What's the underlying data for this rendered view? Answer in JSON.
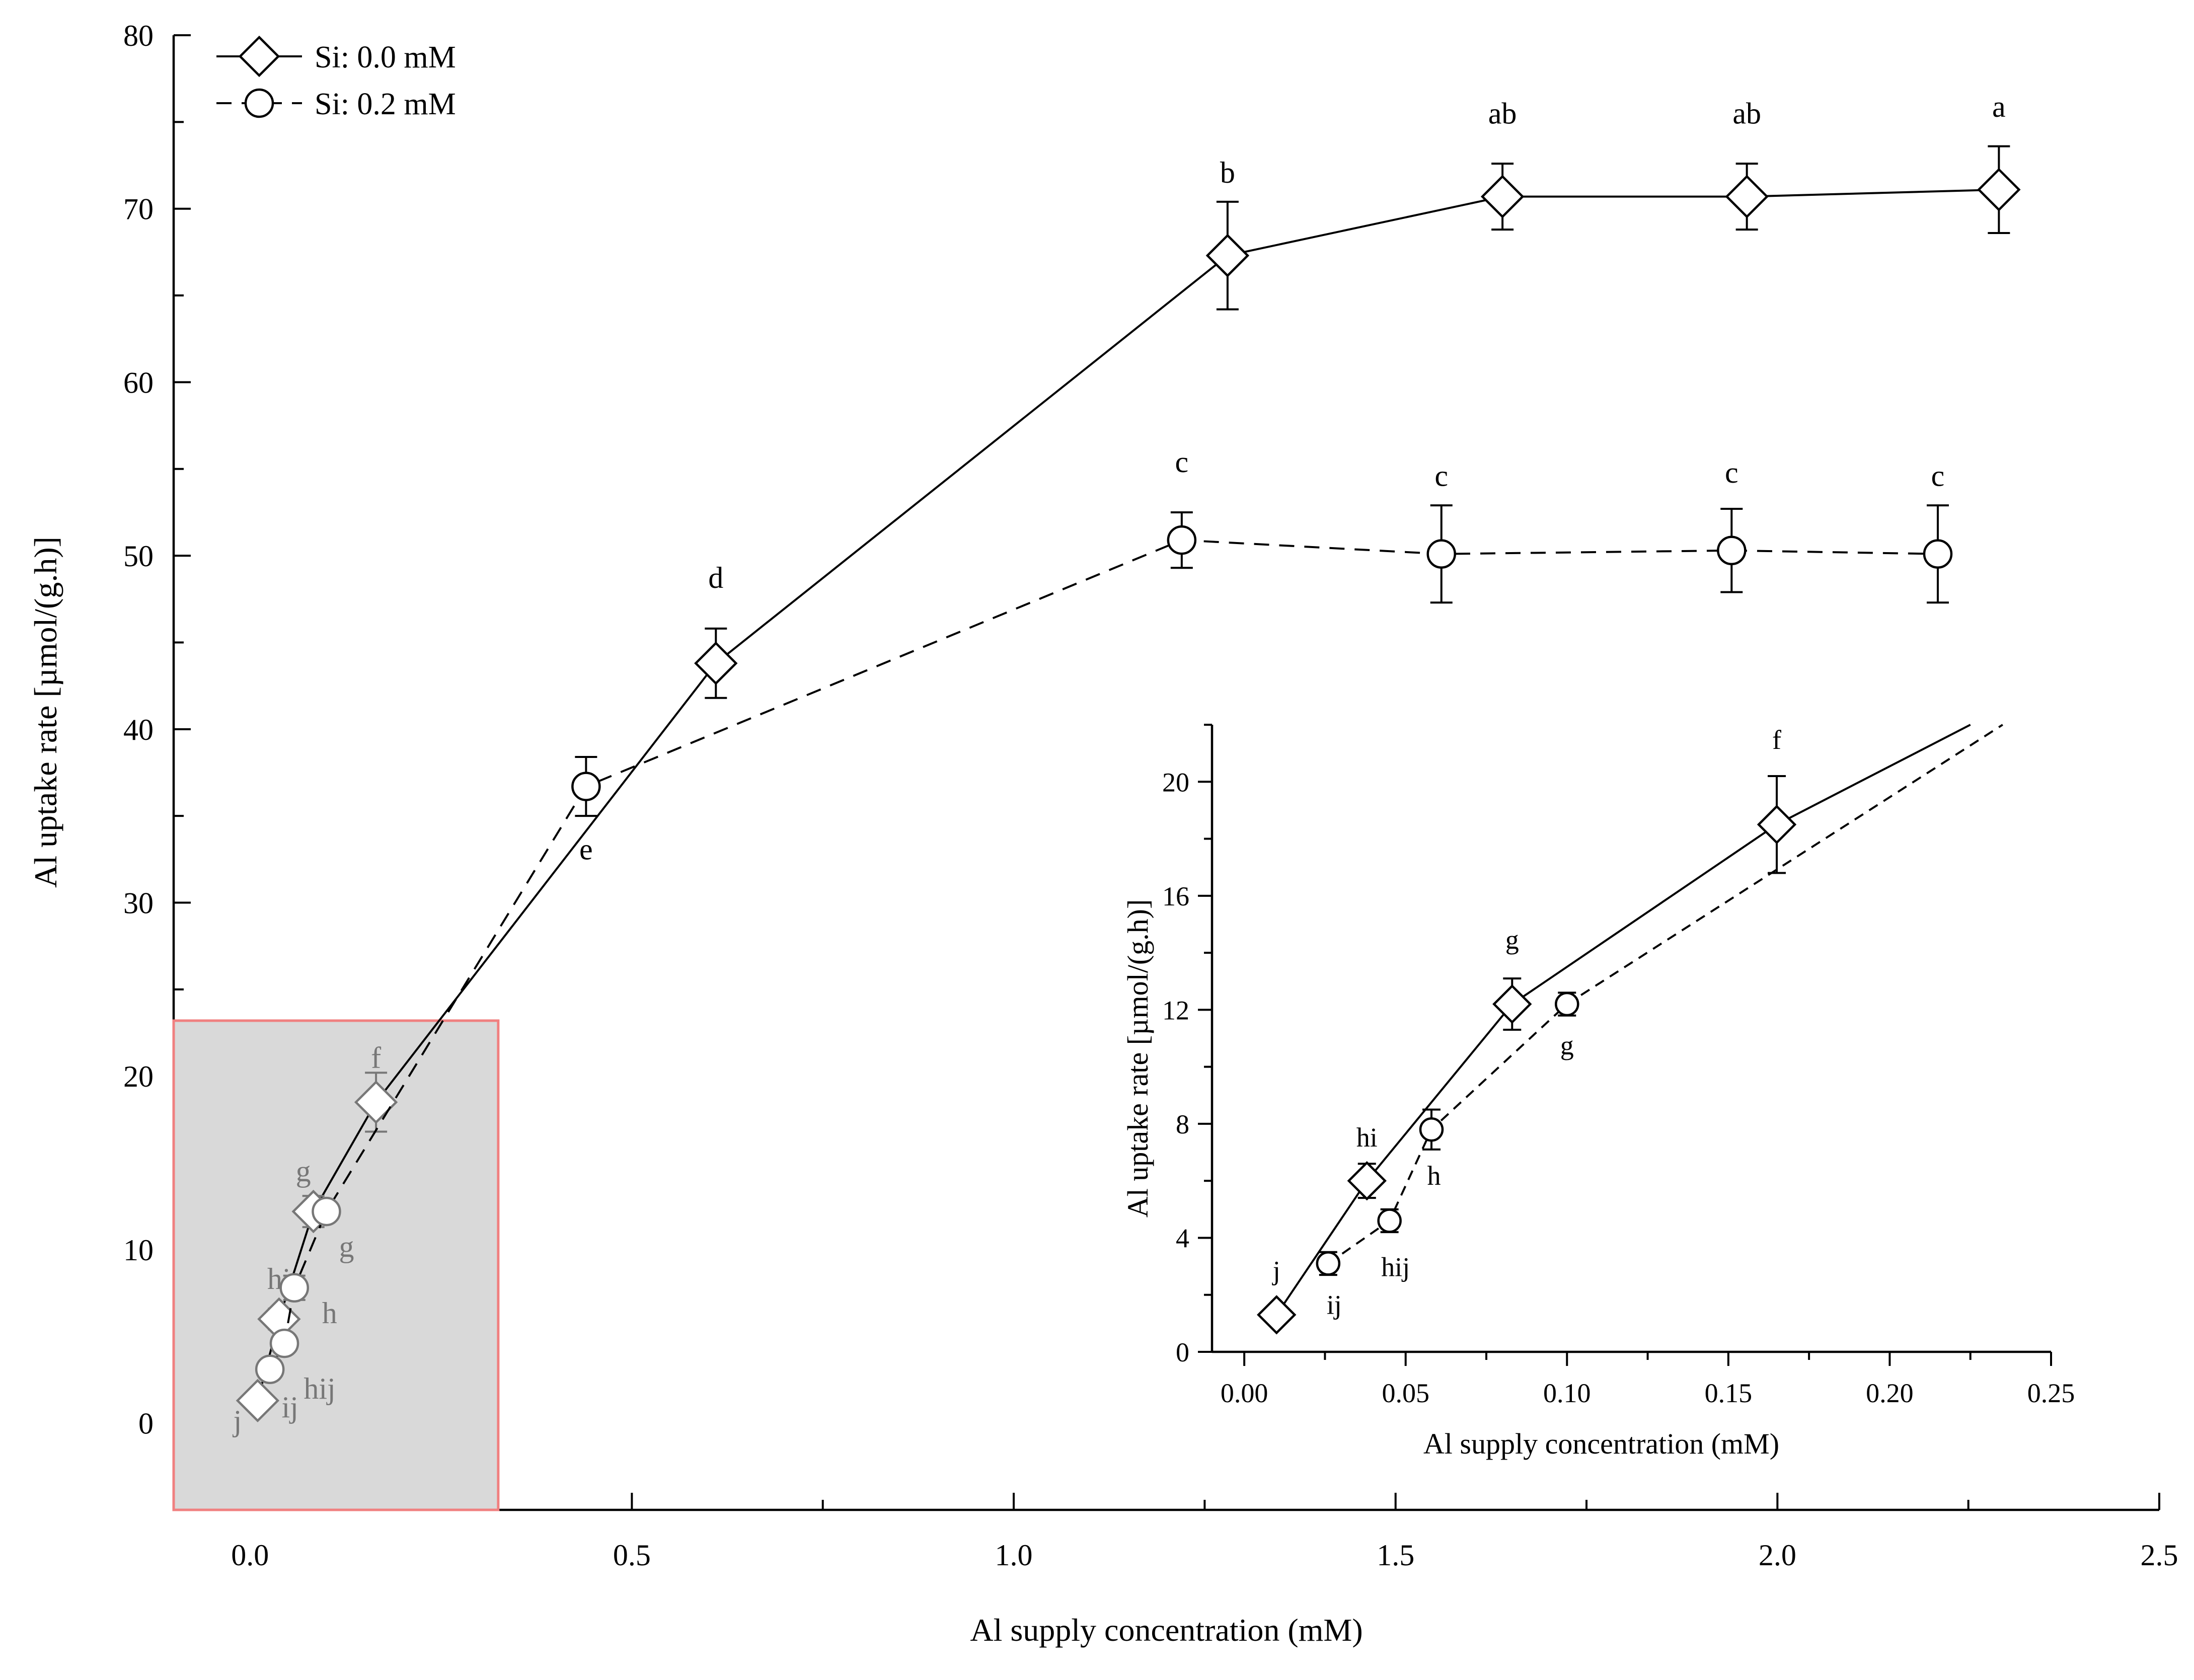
{
  "chart_data": [
    {
      "type": "line",
      "title": "",
      "xlabel": "Al supply concentration (mM)",
      "ylabel": "Al uptake rate [µmol/(g.h)]",
      "xlim": [
        -0.1,
        2.5
      ],
      "ylim": [
        -5,
        80
      ],
      "x_ticks": [
        0.0,
        0.5,
        1.0,
        1.5,
        2.0,
        2.5
      ],
      "x_tick_labels": [
        "0.0",
        "0.5",
        "1.0",
        "1.5",
        "2.0",
        "2.5"
      ],
      "y_ticks": [
        0,
        10,
        20,
        30,
        40,
        50,
        60,
        70,
        80
      ],
      "y_tick_labels": [
        "0",
        "10",
        "20",
        "30",
        "40",
        "50",
        "60",
        "70",
        "80"
      ],
      "legend_position": "top-left",
      "colors": {
        "foreground": "#000000",
        "zoom_box_fill": "#d9d9d9",
        "zoom_box_border": "#f08080",
        "zoom_box_text": "#777777"
      },
      "series": [
        {
          "name": "Si: 0.0 mM",
          "marker": "diamond",
          "line_style": "solid",
          "x": [
            0.01,
            0.038,
            0.083,
            0.165,
            0.61,
            1.28,
            1.64,
            1.96,
            2.29
          ],
          "y": [
            1.3,
            6.0,
            12.2,
            18.5,
            43.8,
            67.3,
            70.7,
            70.7,
            71.1
          ],
          "err": [
            0.3,
            0.6,
            0.9,
            1.7,
            2.0,
            3.1,
            1.9,
            1.9,
            2.5
          ],
          "labels": [
            "j",
            "hi",
            "g",
            "f",
            "d",
            "b",
            "ab",
            "ab",
            "a"
          ]
        },
        {
          "name": "Si: 0.2 mM",
          "marker": "circle",
          "line_style": "dashed",
          "x": [
            0.026,
            0.045,
            0.058,
            0.1,
            0.44,
            1.22,
            1.56,
            1.94,
            2.21
          ],
          "y": [
            3.1,
            4.6,
            7.8,
            12.2,
            36.7,
            50.9,
            50.1,
            50.3,
            50.1
          ],
          "err": [
            0.4,
            0.4,
            0.7,
            0.4,
            1.7,
            1.6,
            2.8,
            2.4,
            2.8
          ],
          "labels": [
            "ij",
            "hij",
            "h",
            "g",
            "e",
            "c",
            "c",
            "c",
            "c"
          ]
        }
      ]
    },
    {
      "type": "line",
      "title": "",
      "xlabel": "Al supply concentration (mM)",
      "ylabel": "Al uptake rate [µmol/(g.h)]",
      "xlim": [
        -0.01,
        0.25
      ],
      "ylim": [
        0,
        22
      ],
      "x_ticks": [
        0.0,
        0.05,
        0.1,
        0.15,
        0.2,
        0.25
      ],
      "x_tick_labels": [
        "0.00",
        "0.05",
        "0.10",
        "0.15",
        "0.20",
        "0.25"
      ],
      "y_ticks": [
        0,
        4,
        8,
        12,
        16,
        20
      ],
      "y_tick_labels": [
        "0",
        "4",
        "8",
        "12",
        "16",
        "20"
      ],
      "series": [
        {
          "name": "Si: 0.0 mM",
          "marker": "diamond",
          "line_style": "solid",
          "x": [
            0.01,
            0.038,
            0.083,
            0.165
          ],
          "y": [
            1.3,
            6.0,
            12.2,
            18.5
          ],
          "err": [
            0.3,
            0.6,
            0.9,
            1.7
          ],
          "labels": [
            "j",
            "hi",
            "g",
            "f"
          ],
          "line_end": [
            0.225,
            22.0
          ]
        },
        {
          "name": "Si: 0.2 mM",
          "marker": "circle",
          "line_style": "dashed",
          "x": [
            0.026,
            0.045,
            0.058,
            0.1
          ],
          "y": [
            3.1,
            4.6,
            7.8,
            12.2
          ],
          "err": [
            0.4,
            0.4,
            0.7,
            0.4
          ],
          "labels": [
            "ij",
            "hij",
            "h",
            "g"
          ],
          "line_end": [
            0.235,
            22.0
          ]
        }
      ]
    }
  ]
}
